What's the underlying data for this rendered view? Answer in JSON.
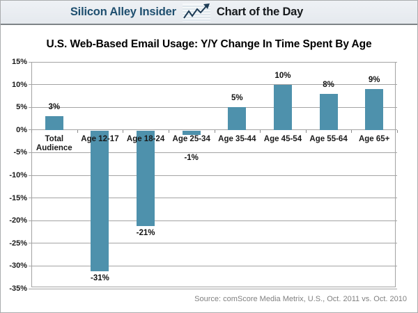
{
  "header": {
    "brand": "Silicon Alley Insider",
    "tagline": "Chart of the Day",
    "icon": "line-chart-with-arrow-icon"
  },
  "chart_data": {
    "type": "bar",
    "title": "U.S. Web-Based Email Usage: Y/Y Change In Time Spent By Age",
    "categories": [
      "Total Audience",
      "Age 12-17",
      "Age 18-24",
      "Age 25-34",
      "Age 35-44",
      "Age 45-54",
      "Age 55-64",
      "Age 65+"
    ],
    "values": [
      3,
      -31,
      -21,
      -1,
      5,
      10,
      8,
      9
    ],
    "data_labels": [
      "3%",
      "-31%",
      "-21%",
      "-1%",
      "5%",
      "10%",
      "8%",
      "9%"
    ],
    "ylim": [
      -35,
      15
    ],
    "ytick_step": 5,
    "ytick_labels": [
      "15%",
      "10%",
      "5%",
      "0%",
      "-5%",
      "-10%",
      "-15%",
      "-20%",
      "-25%",
      "-30%",
      "-35%"
    ],
    "grid": true,
    "legend": false,
    "xlabel": "",
    "ylabel": "",
    "bar_color": "#4e91ac",
    "gridline_color": "#a3a3a3",
    "source": "Source: comScore Media Metrix, U.S., Oct. 2011 vs. Oct. 2010"
  }
}
